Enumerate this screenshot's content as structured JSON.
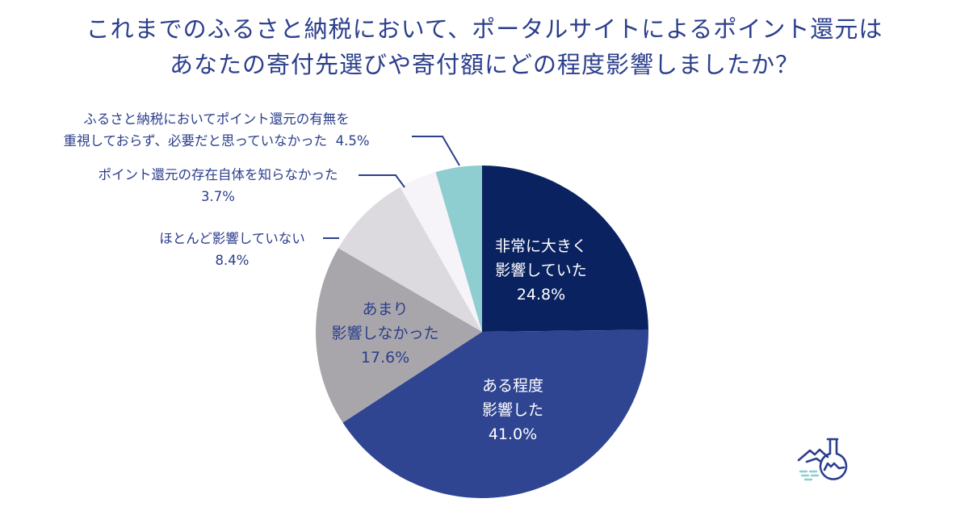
{
  "title": {
    "line1": "これまでのふるさと納税において、ポータルサイトによるポイント還元は",
    "line2": "あなたの寄付先選びや寄付額にどの程度影響しましたか？"
  },
  "slices": [
    {
      "label_line1": "非常に大きく",
      "label_line2": "影響していた",
      "value_text": "24.8%",
      "color": "#0b2260"
    },
    {
      "label_line1": "ある程度",
      "label_line2": "影響した",
      "value_text": "41.0%",
      "color": "#2f4592"
    },
    {
      "label_line1": "あまり",
      "label_line2": "影響しなかった",
      "value_text": "17.6%",
      "color": "#a9a6ab"
    },
    {
      "label_line1": "ほとんど影響していない",
      "value_text": "8.4%",
      "color": "#dcdadf"
    },
    {
      "label_line1": "ポイント還元の存在自体を知らなかった",
      "value_text": "3.7%",
      "color": "#f6f4f8"
    },
    {
      "label_line1": "ふるさと納税においてポイント還元の有無を",
      "label_line2": "重視しておらず、必要だと思っていなかった",
      "value_text": "4.5%",
      "color": "#8ecdd0"
    }
  ],
  "logo": {
    "icon": "flask-mountain-icon",
    "color": "#2b3e8c",
    "accent": "#8ecdd0"
  },
  "chart_data": {
    "type": "pie",
    "title": "これまでのふるさと納税において、ポータルサイトによるポイント還元はあなたの寄付先選びや寄付額にどの程度影響しましたか？",
    "categories": [
      "非常に大きく影響していた",
      "ある程度影響した",
      "あまり影響しなかった",
      "ほとんど影響していない",
      "ポイント還元の存在自体を知らなかった",
      "ふるさと納税においてポイント還元の有無を重視しておらず、必要だと思っていなかった"
    ],
    "values": [
      24.8,
      41.0,
      17.6,
      8.4,
      3.7,
      4.5
    ],
    "unit": "%",
    "start_angle": "12 o'clock",
    "direction": "clockwise",
    "legend": "none (direct labels and callouts)"
  }
}
